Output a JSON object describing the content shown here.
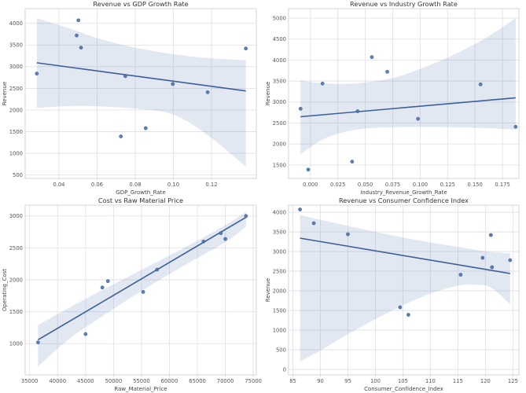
{
  "figure": {
    "background": "#ffffff",
    "accent_color": "#4c72b0",
    "line_color": "#3c5f9b",
    "point_color": "#4c72b0",
    "point_edge_color": "#3a5a85",
    "band_fill_color": "#4c72b0",
    "band_opacity": 0.16,
    "grid_color": "#e2e3e8",
    "spine_color": "#d4d5da",
    "title_color": "#32323c",
    "label_color": "#45454c",
    "tick_color": "#55555c",
    "layout": "2x2-grid"
  },
  "chart_data": [
    {
      "type": "scatter",
      "panel_position": "top-left",
      "title": "Revenue vs GDP Growth Rate",
      "xlabel": "GDP_Growth_Rate",
      "ylabel": "Revenue",
      "xlim": [
        0.0223,
        0.1435
      ],
      "ylim": [
        420,
        4340
      ],
      "xticks": [
        0.04,
        0.06,
        0.08,
        0.1,
        0.12
      ],
      "xtick_labels": [
        "0.04",
        "0.06",
        "0.08",
        "0.10",
        "0.12"
      ],
      "yticks": [
        500,
        1000,
        1500,
        2000,
        2500,
        3000,
        3500,
        4000
      ],
      "ytick_labels": [
        "500",
        "1000",
        "1500",
        "2000",
        "2500",
        "3000",
        "3500",
        "4000"
      ],
      "grid": true,
      "legend": "none",
      "points": {
        "x": [
          0.0284,
          0.0725,
          0.0516,
          0.0855,
          0.0748,
          0.0502,
          0.0493,
          0.0997,
          0.138,
          0.118
        ],
        "y": [
          2840,
          1390,
          3440,
          1580,
          2780,
          4070,
          3720,
          2600,
          3420,
          2410
        ]
      },
      "regression_line": {
        "x": [
          0.0284,
          0.138
        ],
        "y": [
          3090,
          2440
        ]
      },
      "ci_band": {
        "x": [
          0.0284,
          0.045,
          0.06,
          0.08,
          0.0997,
          0.118,
          0.138
        ],
        "upper": [
          4120,
          3890,
          3660,
          3440,
          3290,
          3200,
          3150
        ],
        "lower": [
          2050,
          2090,
          2085,
          2030,
          1900,
          1420,
          690
        ]
      }
    },
    {
      "type": "scatter",
      "panel_position": "top-right",
      "title": "Revenue vs Industry Growth Rate",
      "xlabel": "Industry_Revenue_Growth_Rate",
      "ylabel": "Revenue",
      "xlim": [
        -0.02,
        0.19
      ],
      "ylim": [
        1180,
        5225
      ],
      "xticks": [
        0.0,
        0.025,
        0.05,
        0.075,
        0.1,
        0.125,
        0.15,
        0.175
      ],
      "xtick_labels": [
        "0.000",
        "0.025",
        "0.050",
        "0.075",
        "0.100",
        "0.125",
        "0.150",
        "0.175"
      ],
      "yticks": [
        1500,
        2000,
        2500,
        3000,
        3500,
        4000,
        4500,
        5000
      ],
      "ytick_labels": [
        "1500",
        "2000",
        "2500",
        "3000",
        "3500",
        "4000",
        "4500",
        "5000"
      ],
      "grid": true,
      "legend": "none",
      "points": {
        "x": [
          -0.009,
          -0.002,
          0.011,
          0.038,
          0.043,
          0.056,
          0.07,
          0.098,
          0.155,
          0.187
        ],
        "y": [
          2840,
          1390,
          3440,
          1580,
          2780,
          4070,
          3720,
          2600,
          3420,
          2410
        ]
      },
      "regression_line": {
        "x": [
          -0.009,
          0.187
        ],
        "y": [
          2650,
          3100
        ]
      },
      "ci_band": {
        "x": [
          -0.009,
          0.01,
          0.03,
          0.05,
          0.075,
          0.1,
          0.13,
          0.16,
          0.187
        ],
        "upper": [
          3510,
          3450,
          3430,
          3470,
          3570,
          3790,
          4120,
          4530,
          5000
        ],
        "lower": [
          1760,
          2090,
          2280,
          2370,
          2400,
          2410,
          2400,
          2380,
          2340
        ]
      }
    },
    {
      "type": "scatter",
      "panel_position": "bottom-left",
      "title": "Cost vs Raw Material Price",
      "xlabel": "Raw_Material_Price",
      "ylabel": "Operating_Cost",
      "xlim": [
        34200,
        75540
      ],
      "ylim": [
        510,
        3170
      ],
      "xticks": [
        35000,
        40000,
        45000,
        50000,
        55000,
        60000,
        65000,
        70000,
        75000
      ],
      "xtick_labels": [
        "35000",
        "40000",
        "45000",
        "50000",
        "55000",
        "60000",
        "65000",
        "70000",
        "75000"
      ],
      "yticks": [
        1000,
        1500,
        2000,
        2500,
        3000
      ],
      "ytick_labels": [
        "1000",
        "1500",
        "2000",
        "2500",
        "3000"
      ],
      "grid": true,
      "legend": "none",
      "points": {
        "x": [
          36500,
          45000,
          48000,
          49000,
          55300,
          57800,
          66100,
          69200,
          70000,
          73700
        ],
        "y": [
          1020,
          1150,
          1880,
          1980,
          1810,
          2160,
          2600,
          2730,
          2640,
          3000
        ]
      },
      "regression_line": {
        "x": [
          36500,
          73700
        ],
        "y": [
          1060,
          2980
        ]
      },
      "ci_band": {
        "x": [
          36500,
          42000,
          48000,
          54000,
          60000,
          66000,
          70000,
          73700
        ],
        "upper": [
          1290,
          1560,
          1840,
          2110,
          2380,
          2660,
          2860,
          3060
        ],
        "lower": [
          640,
          1070,
          1430,
          1770,
          2090,
          2390,
          2590,
          2830
        ]
      }
    },
    {
      "type": "scatter",
      "panel_position": "bottom-right",
      "title": "Revenue vs Consumer Confidence Index",
      "xlabel": "Consumer_Confidence_Index",
      "ylabel": "Revenue",
      "xlim": [
        84.2,
        126.1
      ],
      "ylim": [
        -140,
        4180
      ],
      "xticks": [
        85,
        90,
        95,
        100,
        105,
        110,
        115,
        120,
        125
      ],
      "xtick_labels": [
        "85",
        "90",
        "95",
        "100",
        "105",
        "110",
        "115",
        "120",
        "125"
      ],
      "yticks": [
        0,
        500,
        1000,
        1500,
        2000,
        2500,
        3000,
        3500,
        4000
      ],
      "ytick_labels": [
        "0",
        "500",
        "1000",
        "1500",
        "2000",
        "2500",
        "3000",
        "3500",
        "4000"
      ],
      "grid": true,
      "legend": "none",
      "points": {
        "x": [
          119.5,
          106.0,
          95.0,
          104.5,
          124.5,
          86.3,
          88.8,
          121.2,
          121.0,
          115.5
        ],
        "y": [
          2840,
          1390,
          3440,
          1580,
          2780,
          4070,
          3720,
          2600,
          3420,
          2410
        ]
      },
      "regression_line": {
        "x": [
          86.3,
          124.5
        ],
        "y": [
          3340,
          2440
        ]
      },
      "ci_band": {
        "x": [
          86.3,
          90,
          95,
          100,
          105,
          110,
          115,
          118,
          121,
          124.5
        ],
        "upper": [
          3930,
          3810,
          3650,
          3500,
          3360,
          3230,
          3120,
          3050,
          2990,
          2950
        ],
        "lower": [
          200,
          480,
          900,
          1280,
          1630,
          1930,
          2130,
          2160,
          2080,
          1660
        ]
      }
    }
  ]
}
